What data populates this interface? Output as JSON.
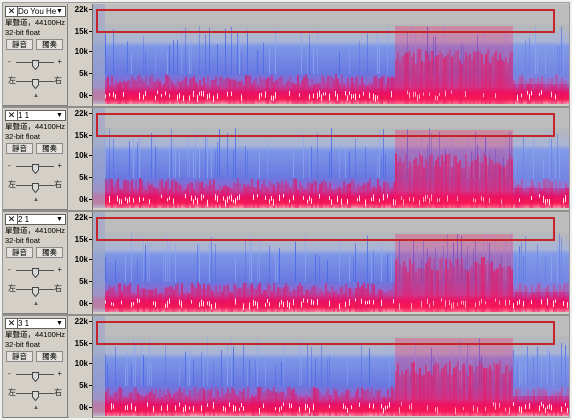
{
  "tracks": [
    {
      "name": "Do You Hea",
      "info": "單聲道，44100Hz",
      "format": "32-bit float",
      "mute": "靜音",
      "solo": "獨奏",
      "gain_level": 0.5,
      "pan_level": 0.5
    },
    {
      "name": "1 1",
      "info": "單聲道，44100Hz",
      "format": "32-bit float",
      "mute": "靜音",
      "solo": "獨奏",
      "gain_level": 0.5,
      "pan_level": 0.5
    },
    {
      "name": "2 1",
      "info": "單聲道，44100Hz",
      "format": "32-bit float",
      "mute": "靜音",
      "solo": "獨奏",
      "gain_level": 0.5,
      "pan_level": 0.5
    },
    {
      "name": "3 1",
      "info": "單聲道，44100Hz",
      "format": "32-bit float",
      "mute": "靜音",
      "solo": "獨奏",
      "gain_level": 0.5,
      "pan_level": 0.5
    }
  ],
  "slider_labels": {
    "gain_minus": "-",
    "gain_plus": "+",
    "pan_left": "左",
    "pan_right": "右"
  },
  "freq_ticks": [
    "22k",
    "15k",
    "10k",
    "5k",
    "0k"
  ],
  "icons": {
    "close": "close-x-icon",
    "menu": "dropdown-arrow-icon",
    "collapse": "collapse-arrow-icon"
  },
  "colors": {
    "spectrum_low": "#ffffff",
    "spectrum_mid": "#e8005a",
    "spectrum_high": "#5a80e8",
    "spectrum_bg": "#b8b8b8",
    "highlight": "#c4252a"
  }
}
